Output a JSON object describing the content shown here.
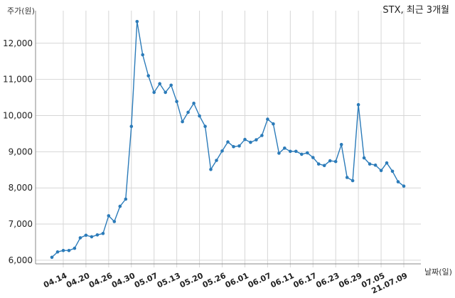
{
  "chart_data": {
    "type": "line",
    "title": "STX, 최근 3개월",
    "ylabel": "주가(원)",
    "xlabel": "날짜(일)",
    "ylim": [
      5900,
      12900
    ],
    "yticks": [
      6000,
      7000,
      8000,
      9000,
      10000,
      11000,
      12000
    ],
    "ytick_labels": [
      "6,000",
      "7,000",
      "8,000",
      "9,000",
      "10,000",
      "11,000",
      "12,000"
    ],
    "grid": true,
    "xtick_labels": [
      "04.14",
      "04.20",
      "04.26",
      "04.30",
      "05.07",
      "05.13",
      "05.20",
      "05.26",
      "06.01",
      "06.07",
      "06.11",
      "06.17",
      "06.23",
      "06.29",
      "07.05",
      "21.07.09"
    ],
    "xtick_index": [
      2,
      6,
      10,
      14,
      18,
      22,
      26,
      30,
      34,
      38,
      42,
      46,
      50,
      54,
      58,
      62
    ],
    "x": [
      "04.12",
      "04.13",
      "04.14",
      "04.15",
      "04.16",
      "04.19",
      "04.20",
      "04.21",
      "04.22",
      "04.23",
      "04.26",
      "04.27",
      "04.28",
      "04.29",
      "04.30",
      "05.03",
      "05.04",
      "05.06",
      "05.07",
      "05.10",
      "05.11",
      "05.12",
      "05.13",
      "05.14",
      "05.17",
      "05.18",
      "05.20",
      "05.21",
      "05.24",
      "05.25",
      "05.26",
      "05.27",
      "05.28",
      "05.31",
      "06.01",
      "06.02",
      "06.03",
      "06.04",
      "06.07",
      "06.08",
      "06.09",
      "06.10",
      "06.11",
      "06.14",
      "06.15",
      "06.16",
      "06.17",
      "06.18",
      "06.21",
      "06.22",
      "06.23",
      "06.24",
      "06.25",
      "06.28",
      "06.29",
      "06.30",
      "07.01",
      "07.02",
      "07.05",
      "07.06",
      "07.07",
      "07.08",
      "07.09"
    ],
    "series": [
      {
        "color": "#2b7bb9",
        "values": [
          6080,
          6230,
          6270,
          6270,
          6330,
          6620,
          6690,
          6650,
          6700,
          6740,
          7230,
          7070,
          7490,
          7690,
          9700,
          12600,
          11680,
          11100,
          10640,
          10880,
          10640,
          10840,
          10390,
          9830,
          10090,
          10340,
          9990,
          9700,
          8510,
          8760,
          9020,
          9270,
          9140,
          9160,
          9340,
          9260,
          9330,
          9450,
          9900,
          9770,
          8960,
          9100,
          9010,
          9010,
          8930,
          8970,
          8840,
          8660,
          8620,
          8750,
          8730,
          9200,
          8290,
          8200,
          10300,
          8830,
          8660,
          8630,
          8480,
          8690,
          8460,
          8170,
          8050
        ]
      }
    ]
  }
}
